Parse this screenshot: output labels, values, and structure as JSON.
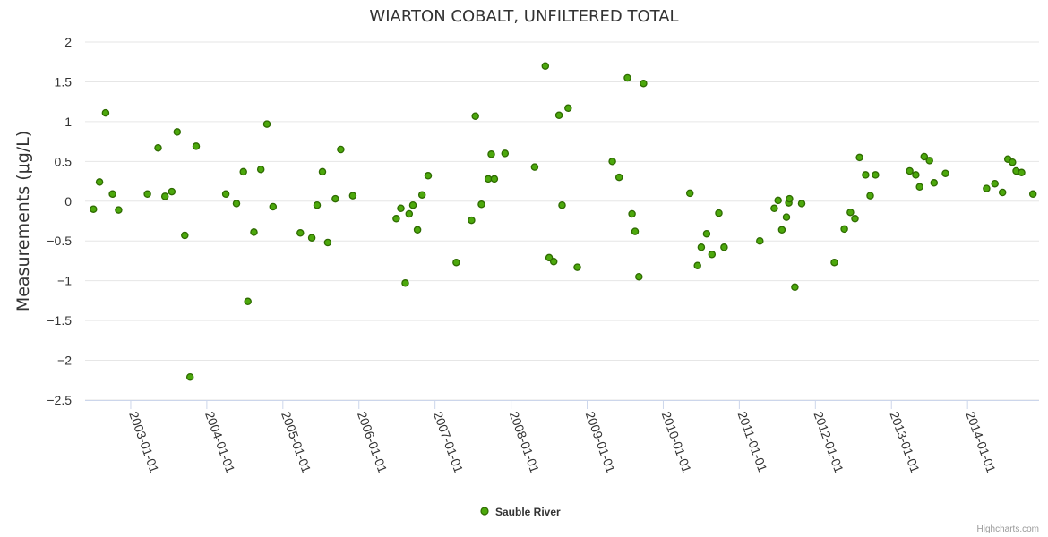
{
  "chart_data": {
    "type": "scatter",
    "title": "WIARTON COBALT, UNFILTERED TOTAL",
    "ylabel": "Measurements (μg/L)",
    "xlabel": "",
    "ylim": [
      -2.5,
      2
    ],
    "y_ticks": [
      "2",
      "1.5",
      "1",
      "0.5",
      "0",
      "−0.5",
      "−1",
      "−1.5",
      "−2",
      "−2.5"
    ],
    "x_ticks": [
      "2003-01-01",
      "2004-01-01",
      "2005-01-01",
      "2006-01-01",
      "2007-01-01",
      "2008-01-01",
      "2009-01-01",
      "2010-01-01",
      "2011-01-01",
      "2012-01-01",
      "2013-01-01",
      "2014-01-01"
    ],
    "xlim": [
      2002.4,
      2014.94
    ],
    "legend_position": "bottom-center",
    "series": [
      {
        "name": "Sauble River",
        "color": "#4ca80c",
        "stroke": "#2e6b00",
        "x": [
          2002.51,
          2002.59,
          2002.67,
          2002.76,
          2002.84,
          2003.22,
          2003.36,
          2003.45,
          2003.54,
          2003.61,
          2003.71,
          2003.78,
          2003.86,
          2004.25,
          2004.39,
          2004.48,
          2004.54,
          2004.62,
          2004.71,
          2004.79,
          2004.87,
          2005.23,
          2005.38,
          2005.45,
          2005.52,
          2005.59,
          2005.69,
          2005.76,
          2005.92,
          2006.49,
          2006.55,
          2006.61,
          2006.66,
          2006.71,
          2006.77,
          2006.83,
          2006.91,
          2007.28,
          2007.48,
          2007.53,
          2007.61,
          2007.7,
          2007.74,
          2007.78,
          2007.92,
          2008.31,
          2008.45,
          2008.5,
          2008.56,
          2008.63,
          2008.67,
          2008.75,
          2008.87,
          2009.33,
          2009.42,
          2009.53,
          2009.59,
          2009.63,
          2009.68,
          2009.74,
          2010.35,
          2010.45,
          2010.5,
          2010.57,
          2010.64,
          2010.73,
          2010.8,
          2011.27,
          2011.46,
          2011.51,
          2011.56,
          2011.62,
          2011.65,
          2011.66,
          2011.73,
          2011.82,
          2012.25,
          2012.38,
          2012.46,
          2012.52,
          2012.58,
          2012.66,
          2012.72,
          2012.79,
          2013.24,
          2013.32,
          2013.37,
          2013.43,
          2013.5,
          2013.56,
          2013.71,
          2014.25,
          2014.36,
          2014.46,
          2014.53,
          2014.59,
          2014.64,
          2014.71,
          2014.86
        ],
        "y": [
          -0.1,
          0.24,
          1.11,
          0.09,
          -0.11,
          0.09,
          0.67,
          0.06,
          0.12,
          0.87,
          -0.43,
          -2.21,
          0.69,
          0.09,
          -0.03,
          0.37,
          -1.26,
          -0.39,
          0.4,
          0.97,
          -0.07,
          -0.4,
          -0.46,
          -0.05,
          0.37,
          -0.52,
          0.03,
          0.65,
          0.07,
          -0.22,
          -0.09,
          -1.03,
          -0.16,
          -0.05,
          -0.36,
          0.08,
          0.32,
          -0.77,
          -0.24,
          1.07,
          -0.04,
          0.28,
          0.59,
          0.28,
          0.6,
          0.43,
          1.7,
          -0.71,
          -0.76,
          1.08,
          -0.05,
          1.17,
          -0.83,
          0.5,
          0.3,
          1.55,
          -0.16,
          -0.38,
          -0.95,
          1.48,
          0.1,
          -0.81,
          -0.58,
          -0.41,
          -0.67,
          -0.15,
          -0.58,
          -0.5,
          -0.09,
          0.01,
          -0.36,
          -0.2,
          -0.02,
          0.03,
          -1.08,
          -0.03,
          -0.77,
          -0.35,
          -0.14,
          -0.22,
          0.55,
          0.33,
          0.07,
          0.33,
          0.38,
          0.33,
          0.18,
          0.56,
          0.51,
          0.23,
          0.35,
          0.16,
          0.22,
          0.11,
          0.53,
          0.49,
          0.38,
          0.36,
          0.09
        ]
      }
    ]
  },
  "credits": "Highcharts.com"
}
